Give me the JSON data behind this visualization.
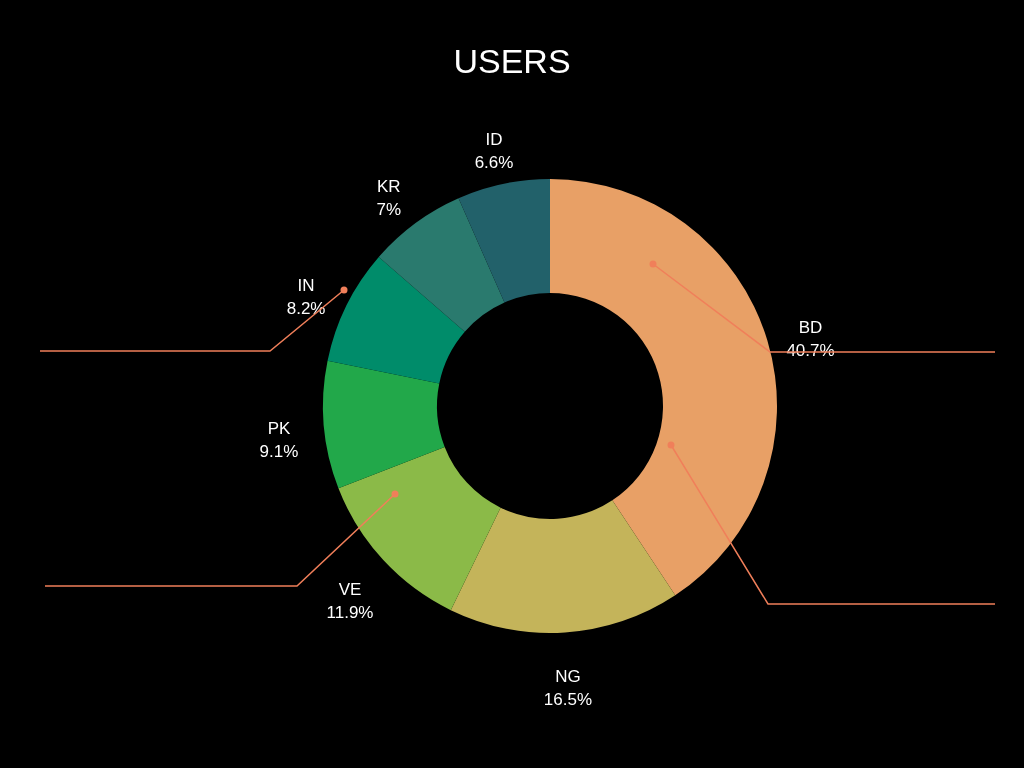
{
  "chart_data": {
    "type": "donut",
    "title": "USERS",
    "categories": [
      "BD",
      "NG",
      "VE",
      "PK",
      "IN",
      "KR",
      "ID"
    ],
    "values": [
      40.7,
      16.5,
      11.9,
      9.1,
      8.2,
      7,
      6.6
    ],
    "value_labels": [
      "40.7%",
      "16.5%",
      "11.9%",
      "9.1%",
      "8.2%",
      "7%",
      "6.6%"
    ],
    "colors": [
      "#e8a066",
      "#c4b45a",
      "#8bba48",
      "#22a84a",
      "#008c6a",
      "#2a7a6e",
      "#22616a"
    ],
    "legend": false
  }
}
